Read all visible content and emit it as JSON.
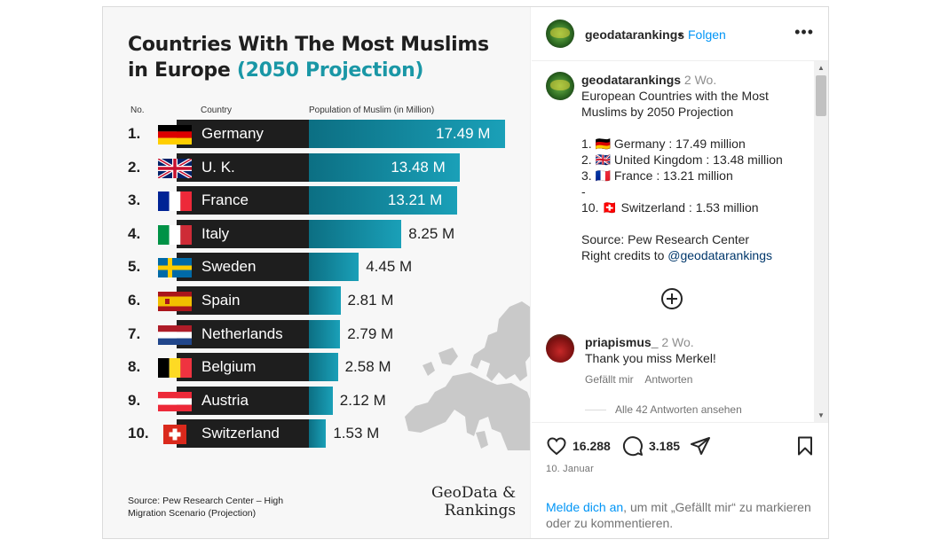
{
  "image": {
    "title_line1": "Countries With The Most Muslims",
    "title_line2": "in Europe",
    "title_accent": "(2050 Projection)",
    "col_no": "No.",
    "col_country": "Country",
    "col_population": "Population of Muslim (in Million)",
    "rows": [
      {
        "no": "1.",
        "country": "Germany",
        "value_label": "17.49 M",
        "value": 17.49,
        "flag": "germany-flag"
      },
      {
        "no": "2.",
        "country": "U. K.",
        "value_label": "13.48 M",
        "value": 13.48,
        "flag": "uk-flag"
      },
      {
        "no": "3.",
        "country": "France",
        "value_label": "13.21 M",
        "value": 13.21,
        "flag": "france-flag"
      },
      {
        "no": "4.",
        "country": "Italy",
        "value_label": "8.25 M",
        "value": 8.25,
        "flag": "italy-flag"
      },
      {
        "no": "5.",
        "country": "Sweden",
        "value_label": "4.45 M",
        "value": 4.45,
        "flag": "sweden-flag"
      },
      {
        "no": "6.",
        "country": "Spain",
        "value_label": "2.81 M",
        "value": 2.81,
        "flag": "spain-flag"
      },
      {
        "no": "7.",
        "country": "Netherlands",
        "value_label": "2.79 M",
        "value": 2.79,
        "flag": "netherlands-flag"
      },
      {
        "no": "8.",
        "country": "Belgium",
        "value_label": "2.58 M",
        "value": 2.58,
        "flag": "belgium-flag"
      },
      {
        "no": "9.",
        "country": "Austria",
        "value_label": "2.12 M",
        "value": 2.12,
        "flag": "austria-flag"
      },
      {
        "no": "10.",
        "country": "Switzerland",
        "value_label": "1.53 M",
        "value": 1.53,
        "flag": "switzerland-flag"
      }
    ],
    "source_line1": "Source: Pew Research Center – High",
    "source_line2": "Migration Scenario (Projection)",
    "brand_line1": "GeoData &",
    "brand_line2": "Rankings"
  },
  "chart_data": {
    "type": "bar",
    "title": "Countries With The Most Muslims in Europe (2050 Projection)",
    "xlabel": "",
    "ylabel": "Population of Muslim (in Million)",
    "categories": [
      "Germany",
      "U. K.",
      "France",
      "Italy",
      "Sweden",
      "Spain",
      "Netherlands",
      "Belgium",
      "Austria",
      "Switzerland"
    ],
    "values": [
      17.49,
      13.48,
      13.21,
      8.25,
      4.45,
      2.81,
      2.79,
      2.58,
      2.12,
      1.53
    ],
    "orientation": "horizontal",
    "grid": false
  },
  "post": {
    "username": "geodatarankings",
    "follow": "Folgen",
    "dot": "•",
    "caption_time": "2 Wo.",
    "caption_lines": [
      "European Countries with the Most",
      "Muslims by 2050 Projection"
    ],
    "list": [
      "1. 🇩🇪 Germany : 17.49 million",
      "2. 🇬🇧 United Kingdom : 13.48 million",
      "3. 🇫🇷 France : 13.21 million",
      "-",
      "10. 🇨🇭 Switzerland : 1.53 million"
    ],
    "source_line": "Source: Pew Research Center",
    "credits_prefix": "Right credits to ",
    "credits_handle": "@geodatarankings",
    "comment": {
      "username": "priapismus_",
      "time": "2 Wo.",
      "text": "Thank you miss Merkel!",
      "like": "Gefällt mir",
      "reply": "Antworten"
    },
    "view_replies": "Alle 42 Antworten ansehen",
    "likes": "16.288",
    "comments_count": "3.185",
    "date": "10. Januar",
    "login_link": "Melde dich an",
    "login_rest": ", um mit „Gefällt mir“ zu markieren oder zu kommentieren."
  }
}
